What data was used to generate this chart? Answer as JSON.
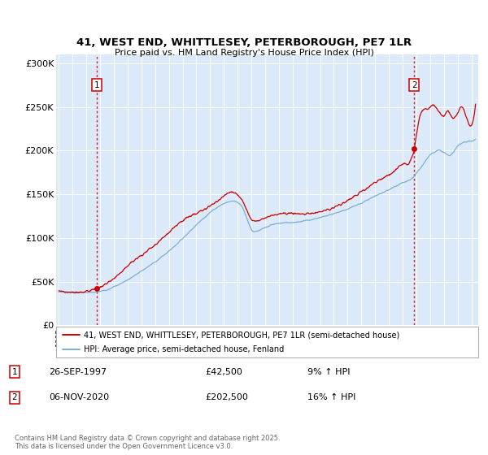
{
  "title": "41, WEST END, WHITTLESEY, PETERBOROUGH, PE7 1LR",
  "subtitle": "Price paid vs. HM Land Registry's House Price Index (HPI)",
  "legend_label_red": "41, WEST END, WHITTLESEY, PETERBOROUGH, PE7 1LR (semi-detached house)",
  "legend_label_blue": "HPI: Average price, semi-detached house, Fenland",
  "annotation1_date": "26-SEP-1997",
  "annotation1_price": "£42,500",
  "annotation1_hpi": "9% ↑ HPI",
  "annotation2_date": "06-NOV-2020",
  "annotation2_price": "£202,500",
  "annotation2_hpi": "16% ↑ HPI",
  "footnote": "Contains HM Land Registry data © Crown copyright and database right 2025.\nThis data is licensed under the Open Government Licence v3.0.",
  "ylim": [
    0,
    310000
  ],
  "yticks": [
    0,
    50000,
    100000,
    150000,
    200000,
    250000,
    300000
  ],
  "ytick_labels": [
    "£0",
    "£50K",
    "£100K",
    "£150K",
    "£200K",
    "£250K",
    "£300K"
  ],
  "bg_color": "#dce9f8",
  "red_color": "#cc0000",
  "blue_color": "#7aafd4",
  "grid_color": "#ffffff",
  "sale1_x": 1997.74,
  "sale1_y": 42500,
  "sale2_x": 2020.85,
  "sale2_y": 202500,
  "xmin": 1994.8,
  "xmax": 2025.5
}
